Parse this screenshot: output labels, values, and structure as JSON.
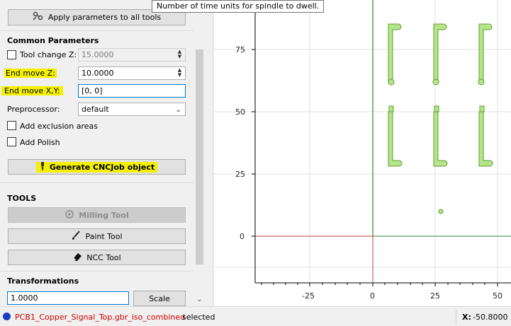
{
  "tooltip": {
    "text": "Number of time units for spindle to dwell."
  },
  "panel": {
    "apply_button": "Apply parameters to all tools",
    "common_title": "Common Parameters",
    "tool_change_label": "Tool change Z:",
    "tool_change_value": "15.0000",
    "end_move_z_label": "End move Z:",
    "end_move_z_value": "10.0000",
    "end_move_xy_label": "End move X,Y:",
    "end_move_xy_value": "[0, 0]",
    "preprocessor_label": "Preprocessor:",
    "preprocessor_value": "default",
    "exclusion_label": "Add exclusion areas",
    "polish_label": "Add Polish",
    "generate_button": "Generate CNCJob object",
    "tools_title": "TOOLS",
    "milling_button": "Milling Tool",
    "paint_button": "Paint Tool",
    "ncc_button": "NCC Tool",
    "transformations_title": "Transformations",
    "scale_value": "1.0000",
    "scale_button": "Scale"
  },
  "axes": {
    "x_ticks": [
      "-25",
      "0",
      "25",
      "50"
    ],
    "y_ticks": [
      "75",
      "50",
      "25",
      "0"
    ]
  },
  "status": {
    "object_name": "PCB1_Copper_Signal_Top.gbr_iso_combined",
    "selected_text": "selected",
    "coord_label": "X:",
    "coord_value": "-50.8000"
  },
  "colors": {
    "highlight": "#f4f000",
    "trace_fill": "#b5e48c",
    "trace_stroke": "#5aa02c",
    "axis_x": "#c04040",
    "axis_y": "#2e8b2e",
    "status_dot": "#1a3fbf",
    "status_name": "#cc0000"
  }
}
